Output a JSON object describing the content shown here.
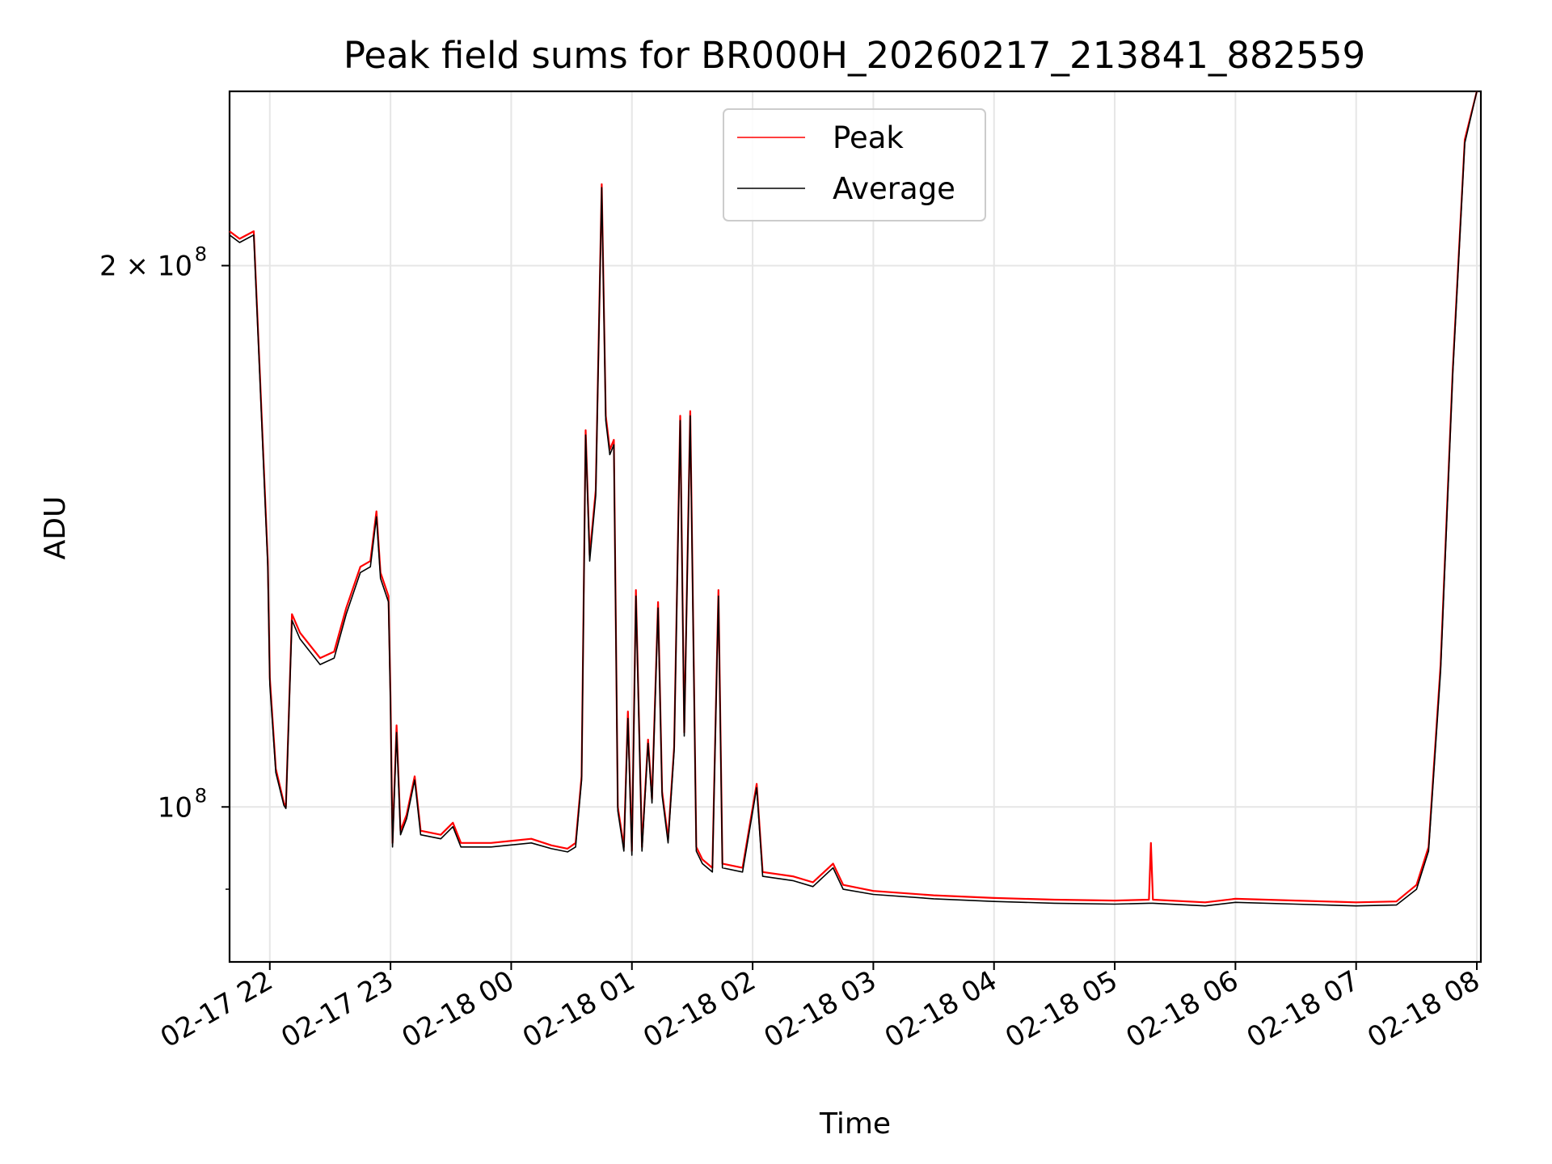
{
  "chart_data": {
    "type": "line",
    "title": "Peak field sums for BR000H_20260217_213841_882559",
    "xlabel": "Time",
    "ylabel": "ADU",
    "yscale": "log",
    "ylim": [
      82000000,
      250000000
    ],
    "xlim": [
      "2026-02-17 21:40",
      "2026-02-18 08:02"
    ],
    "grid": true,
    "legend_position": "top-center",
    "xticks": [
      {
        "t": "2026-02-17 22:00",
        "label": "02-17 22"
      },
      {
        "t": "2026-02-17 23:00",
        "label": "02-17 23"
      },
      {
        "t": "2026-02-18 00:00",
        "label": "02-18 00"
      },
      {
        "t": "2026-02-18 01:00",
        "label": "02-18 01"
      },
      {
        "t": "2026-02-18 02:00",
        "label": "02-18 02"
      },
      {
        "t": "2026-02-18 03:00",
        "label": "02-18 03"
      },
      {
        "t": "2026-02-18 04:00",
        "label": "02-18 04"
      },
      {
        "t": "2026-02-18 05:00",
        "label": "02-18 05"
      },
      {
        "t": "2026-02-18 06:00",
        "label": "02-18 06"
      },
      {
        "t": "2026-02-18 07:00",
        "label": "02-18 07"
      },
      {
        "t": "2026-02-18 08:00",
        "label": "02-18 08"
      }
    ],
    "yticks": [
      {
        "value": 100000000,
        "label_main": "10",
        "label_exp": "8"
      },
      {
        "value": 200000000,
        "label_main": "2 × 10",
        "label_exp": "8"
      }
    ],
    "colors": {
      "peak": "#ff0000",
      "average": "#000000"
    },
    "series": [
      {
        "name": "Peak",
        "color": "#ff0000",
        "points": [
          [
            "2026-02-17 21:40",
            209000000
          ],
          [
            "2026-02-17 21:45",
            207000000
          ],
          [
            "2026-02-17 21:52",
            209000000
          ],
          [
            "2026-02-17 21:55",
            175000000
          ],
          [
            "2026-02-17 21:59",
            137000000
          ],
          [
            "2026-02-17 22:00",
            118000000
          ],
          [
            "2026-02-17 22:03",
            105000000
          ],
          [
            "2026-02-17 22:07",
            100500000
          ],
          [
            "2026-02-17 22:08",
            100000000
          ],
          [
            "2026-02-17 22:11",
            128000000
          ],
          [
            "2026-02-17 22:15",
            125000000
          ],
          [
            "2026-02-17 22:25",
            121000000
          ],
          [
            "2026-02-17 22:32",
            122000000
          ],
          [
            "2026-02-17 22:38",
            129000000
          ],
          [
            "2026-02-17 22:45",
            136000000
          ],
          [
            "2026-02-17 22:50",
            137000000
          ],
          [
            "2026-02-17 22:53",
            146000000
          ],
          [
            "2026-02-17 22:55",
            135000000
          ],
          [
            "2026-02-17 22:59",
            131000000
          ],
          [
            "2026-02-17 23:00",
            115000000
          ],
          [
            "2026-02-17 23:01",
            95500000
          ],
          [
            "2026-02-17 23:03",
            111000000
          ],
          [
            "2026-02-17 23:05",
            97000000
          ],
          [
            "2026-02-17 23:08",
            99000000
          ],
          [
            "2026-02-17 23:12",
            104000000
          ],
          [
            "2026-02-17 23:15",
            97000000
          ],
          [
            "2026-02-17 23:25",
            96500000
          ],
          [
            "2026-02-17 23:31",
            98000000
          ],
          [
            "2026-02-17 23:35",
            95500000
          ],
          [
            "2026-02-17 23:50",
            95500000
          ],
          [
            "2026-02-18 00:10",
            96000000
          ],
          [
            "2026-02-18 00:20",
            95200000
          ],
          [
            "2026-02-18 00:28",
            94800000
          ],
          [
            "2026-02-18 00:32",
            95500000
          ],
          [
            "2026-02-18 00:35",
            104000000
          ],
          [
            "2026-02-18 00:37",
            162000000
          ],
          [
            "2026-02-18 00:39",
            138000000
          ],
          [
            "2026-02-18 00:42",
            150000000
          ],
          [
            "2026-02-18 00:45",
            222000000
          ],
          [
            "2026-02-18 00:47",
            165000000
          ],
          [
            "2026-02-18 00:49",
            158000000
          ],
          [
            "2026-02-18 00:51",
            160000000
          ],
          [
            "2026-02-18 00:53",
            100000000
          ],
          [
            "2026-02-18 00:56",
            95000000
          ],
          [
            "2026-02-18 00:58",
            113000000
          ],
          [
            "2026-02-18 01:00",
            94500000
          ],
          [
            "2026-02-18 01:02",
            132000000
          ],
          [
            "2026-02-18 01:05",
            95000000
          ],
          [
            "2026-02-18 01:08",
            109000000
          ],
          [
            "2026-02-18 01:10",
            101000000
          ],
          [
            "2026-02-18 01:13",
            130000000
          ],
          [
            "2026-02-18 01:15",
            102000000
          ],
          [
            "2026-02-18 01:18",
            96000000
          ],
          [
            "2026-02-18 01:21",
            108000000
          ],
          [
            "2026-02-18 01:24",
            165000000
          ],
          [
            "2026-02-18 01:26",
            110000000
          ],
          [
            "2026-02-18 01:29",
            166000000
          ],
          [
            "2026-02-18 01:32",
            95000000
          ],
          [
            "2026-02-18 01:35",
            93500000
          ],
          [
            "2026-02-18 01:40",
            92500000
          ],
          [
            "2026-02-18 01:43",
            132000000
          ],
          [
            "2026-02-18 01:45",
            93000000
          ],
          [
            "2026-02-18 01:55",
            92500000
          ],
          [
            "2026-02-18 02:02",
            103000000
          ],
          [
            "2026-02-18 02:05",
            92000000
          ],
          [
            "2026-02-18 02:20",
            91500000
          ],
          [
            "2026-02-18 02:30",
            90800000
          ],
          [
            "2026-02-18 02:40",
            93000000
          ],
          [
            "2026-02-18 02:45",
            90500000
          ],
          [
            "2026-02-18 03:00",
            89800000
          ],
          [
            "2026-02-18 03:30",
            89300000
          ],
          [
            "2026-02-18 04:00",
            89000000
          ],
          [
            "2026-02-18 04:30",
            88800000
          ],
          [
            "2026-02-18 05:00",
            88700000
          ],
          [
            "2026-02-18 05:17",
            88800000
          ],
          [
            "2026-02-18 05:18",
            95500000
          ],
          [
            "2026-02-18 05:19",
            88800000
          ],
          [
            "2026-02-18 05:45",
            88500000
          ],
          [
            "2026-02-18 06:00",
            88900000
          ],
          [
            "2026-02-18 06:30",
            88700000
          ],
          [
            "2026-02-18 07:00",
            88500000
          ],
          [
            "2026-02-18 07:20",
            88600000
          ],
          [
            "2026-02-18 07:30",
            90500000
          ],
          [
            "2026-02-18 07:36",
            95000000
          ],
          [
            "2026-02-18 07:42",
            120000000
          ],
          [
            "2026-02-18 07:48",
            175000000
          ],
          [
            "2026-02-18 07:54",
            235000000
          ],
          [
            "2026-02-18 08:00",
            250000000
          ]
        ]
      },
      {
        "name": "Average",
        "color": "#000000",
        "points": [
          [
            "2026-02-17 21:40",
            208000000
          ],
          [
            "2026-02-17 21:45",
            206000000
          ],
          [
            "2026-02-17 21:52",
            208000000
          ],
          [
            "2026-02-17 21:55",
            174000000
          ],
          [
            "2026-02-17 21:59",
            136000000
          ],
          [
            "2026-02-17 22:00",
            117000000
          ],
          [
            "2026-02-17 22:03",
            104500000
          ],
          [
            "2026-02-17 22:07",
            100200000
          ],
          [
            "2026-02-17 22:08",
            99800000
          ],
          [
            "2026-02-17 22:11",
            127000000
          ],
          [
            "2026-02-17 22:15",
            124000000
          ],
          [
            "2026-02-17 22:25",
            120000000
          ],
          [
            "2026-02-17 22:32",
            121000000
          ],
          [
            "2026-02-17 22:38",
            128000000
          ],
          [
            "2026-02-17 22:45",
            135000000
          ],
          [
            "2026-02-17 22:50",
            136000000
          ],
          [
            "2026-02-17 22:53",
            145000000
          ],
          [
            "2026-02-17 22:55",
            134000000
          ],
          [
            "2026-02-17 22:59",
            130000000
          ],
          [
            "2026-02-17 23:00",
            114000000
          ],
          [
            "2026-02-17 23:01",
            95000000
          ],
          [
            "2026-02-17 23:03",
            110000000
          ],
          [
            "2026-02-17 23:05",
            96500000
          ],
          [
            "2026-02-17 23:08",
            98500000
          ],
          [
            "2026-02-17 23:12",
            103500000
          ],
          [
            "2026-02-17 23:15",
            96500000
          ],
          [
            "2026-02-17 23:25",
            96000000
          ],
          [
            "2026-02-17 23:31",
            97500000
          ],
          [
            "2026-02-17 23:35",
            95000000
          ],
          [
            "2026-02-17 23:50",
            95000000
          ],
          [
            "2026-02-18 00:10",
            95500000
          ],
          [
            "2026-02-18 00:20",
            94800000
          ],
          [
            "2026-02-18 00:28",
            94400000
          ],
          [
            "2026-02-18 00:32",
            95000000
          ],
          [
            "2026-02-18 00:35",
            103500000
          ],
          [
            "2026-02-18 00:37",
            161000000
          ],
          [
            "2026-02-18 00:39",
            137000000
          ],
          [
            "2026-02-18 00:42",
            149000000
          ],
          [
            "2026-02-18 00:45",
            221000000
          ],
          [
            "2026-02-18 00:47",
            164000000
          ],
          [
            "2026-02-18 00:49",
            157000000
          ],
          [
            "2026-02-18 00:51",
            159000000
          ],
          [
            "2026-02-18 00:53",
            99500000
          ],
          [
            "2026-02-18 00:56",
            94500000
          ],
          [
            "2026-02-18 00:58",
            112000000
          ],
          [
            "2026-02-18 01:00",
            94000000
          ],
          [
            "2026-02-18 01:02",
            131000000
          ],
          [
            "2026-02-18 01:05",
            94500000
          ],
          [
            "2026-02-18 01:08",
            108500000
          ],
          [
            "2026-02-18 01:10",
            100500000
          ],
          [
            "2026-02-18 01:13",
            129000000
          ],
          [
            "2026-02-18 01:15",
            101500000
          ],
          [
            "2026-02-18 01:18",
            95500000
          ],
          [
            "2026-02-18 01:21",
            107500000
          ],
          [
            "2026-02-18 01:24",
            164000000
          ],
          [
            "2026-02-18 01:26",
            109500000
          ],
          [
            "2026-02-18 01:29",
            165000000
          ],
          [
            "2026-02-18 01:32",
            94500000
          ],
          [
            "2026-02-18 01:35",
            93000000
          ],
          [
            "2026-02-18 01:40",
            92000000
          ],
          [
            "2026-02-18 01:43",
            131000000
          ],
          [
            "2026-02-18 01:45",
            92500000
          ],
          [
            "2026-02-18 01:55",
            92000000
          ],
          [
            "2026-02-18 02:02",
            102500000
          ],
          [
            "2026-02-18 02:05",
            91500000
          ],
          [
            "2026-02-18 02:20",
            91000000
          ],
          [
            "2026-02-18 02:30",
            90300000
          ],
          [
            "2026-02-18 02:40",
            92500000
          ],
          [
            "2026-02-18 02:45",
            90000000
          ],
          [
            "2026-02-18 03:00",
            89400000
          ],
          [
            "2026-02-18 03:30",
            88900000
          ],
          [
            "2026-02-18 04:00",
            88600000
          ],
          [
            "2026-02-18 04:30",
            88400000
          ],
          [
            "2026-02-18 05:00",
            88300000
          ],
          [
            "2026-02-18 05:17",
            88400000
          ],
          [
            "2026-02-18 05:18",
            88400000
          ],
          [
            "2026-02-18 05:19",
            88400000
          ],
          [
            "2026-02-18 05:45",
            88100000
          ],
          [
            "2026-02-18 06:00",
            88500000
          ],
          [
            "2026-02-18 06:30",
            88300000
          ],
          [
            "2026-02-18 07:00",
            88100000
          ],
          [
            "2026-02-18 07:20",
            88200000
          ],
          [
            "2026-02-18 07:30",
            90000000
          ],
          [
            "2026-02-18 07:36",
            94500000
          ],
          [
            "2026-02-18 07:42",
            119000000
          ],
          [
            "2026-02-18 07:48",
            174000000
          ],
          [
            "2026-02-18 07:54",
            234000000
          ],
          [
            "2026-02-18 08:00",
            250000000
          ]
        ]
      }
    ]
  }
}
